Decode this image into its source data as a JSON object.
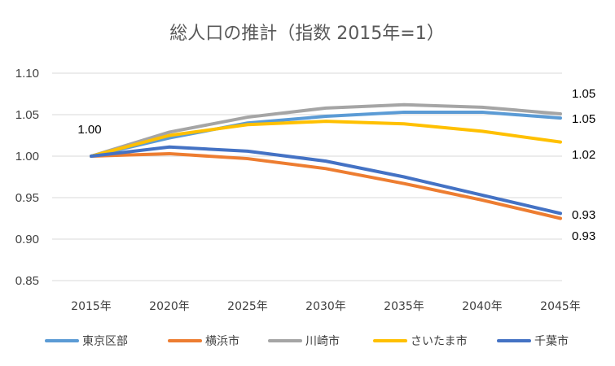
{
  "chart_data": {
    "type": "line",
    "title": "総人口の推計（指数 2015年=1）",
    "categories": [
      "2015年",
      "2020年",
      "2025年",
      "2030年",
      "2035年",
      "2040年",
      "2045年"
    ],
    "ylim": [
      0.85,
      1.1
    ],
    "yticks": [
      "0.85",
      "0.90",
      "0.95",
      "1.00",
      "1.05",
      "1.10"
    ],
    "grid": true,
    "legend_position": "bottom",
    "series": [
      {
        "name": "東京区部",
        "color": "#5B9BD5",
        "values": [
          1.0,
          1.022,
          1.04,
          1.048,
          1.053,
          1.053,
          1.046
        ],
        "end_label": "1.05"
      },
      {
        "name": "横浜市",
        "color": "#ED7D31",
        "values": [
          1.0,
          1.003,
          0.997,
          0.985,
          0.967,
          0.947,
          0.925
        ],
        "end_label": "0.93"
      },
      {
        "name": "川崎市",
        "color": "#A5A5A5",
        "values": [
          1.0,
          1.029,
          1.047,
          1.058,
          1.062,
          1.059,
          1.051
        ],
        "end_label": "1.05"
      },
      {
        "name": "さいたま市",
        "color": "#FFC000",
        "values": [
          1.0,
          1.025,
          1.038,
          1.042,
          1.039,
          1.03,
          1.017
        ],
        "end_label": "1.02"
      },
      {
        "name": "千葉市",
        "color": "#4472C4",
        "values": [
          1.0,
          1.011,
          1.006,
          0.994,
          0.975,
          0.953,
          0.931
        ],
        "end_label": "0.93"
      }
    ],
    "start_label": "1.00"
  }
}
